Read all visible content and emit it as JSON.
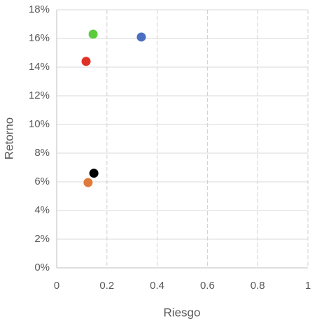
{
  "chart_data": {
    "type": "scatter",
    "x_label": "Riesgo",
    "y_label": "Retorno",
    "series": [
      {
        "color": "#5ccc3c",
        "x": [
          0.145
        ],
        "values": [
          16.3
        ]
      },
      {
        "color": "#4a6fc1",
        "x": [
          0.337
        ],
        "values": [
          16.1
        ]
      },
      {
        "color": "#e03127",
        "x": [
          0.117
        ],
        "values": [
          14.4
        ]
      },
      {
        "color": "#000000",
        "x": [
          0.148
        ],
        "values": [
          6.6
        ]
      },
      {
        "color": "#e07a3c",
        "x": [
          0.125
        ],
        "values": [
          5.95
        ]
      }
    ],
    "xlim": [
      0,
      1
    ],
    "xticks": [
      0,
      0.2,
      0.4,
      0.6,
      0.8,
      1
    ],
    "ylim": [
      0,
      18
    ],
    "yticks": [
      {
        "value": 0,
        "label": "0%"
      },
      {
        "value": 2,
        "label": "2%"
      },
      {
        "value": 4,
        "label": "4%"
      },
      {
        "value": 6,
        "label": "6%"
      },
      {
        "value": 8,
        "label": "8%"
      },
      {
        "value": 10,
        "label": "10%"
      },
      {
        "value": 12,
        "label": "12%"
      },
      {
        "value": 14,
        "label": "14%"
      },
      {
        "value": 16,
        "label": "16%"
      },
      {
        "value": 18,
        "label": "18%"
      }
    ],
    "grid": true
  }
}
